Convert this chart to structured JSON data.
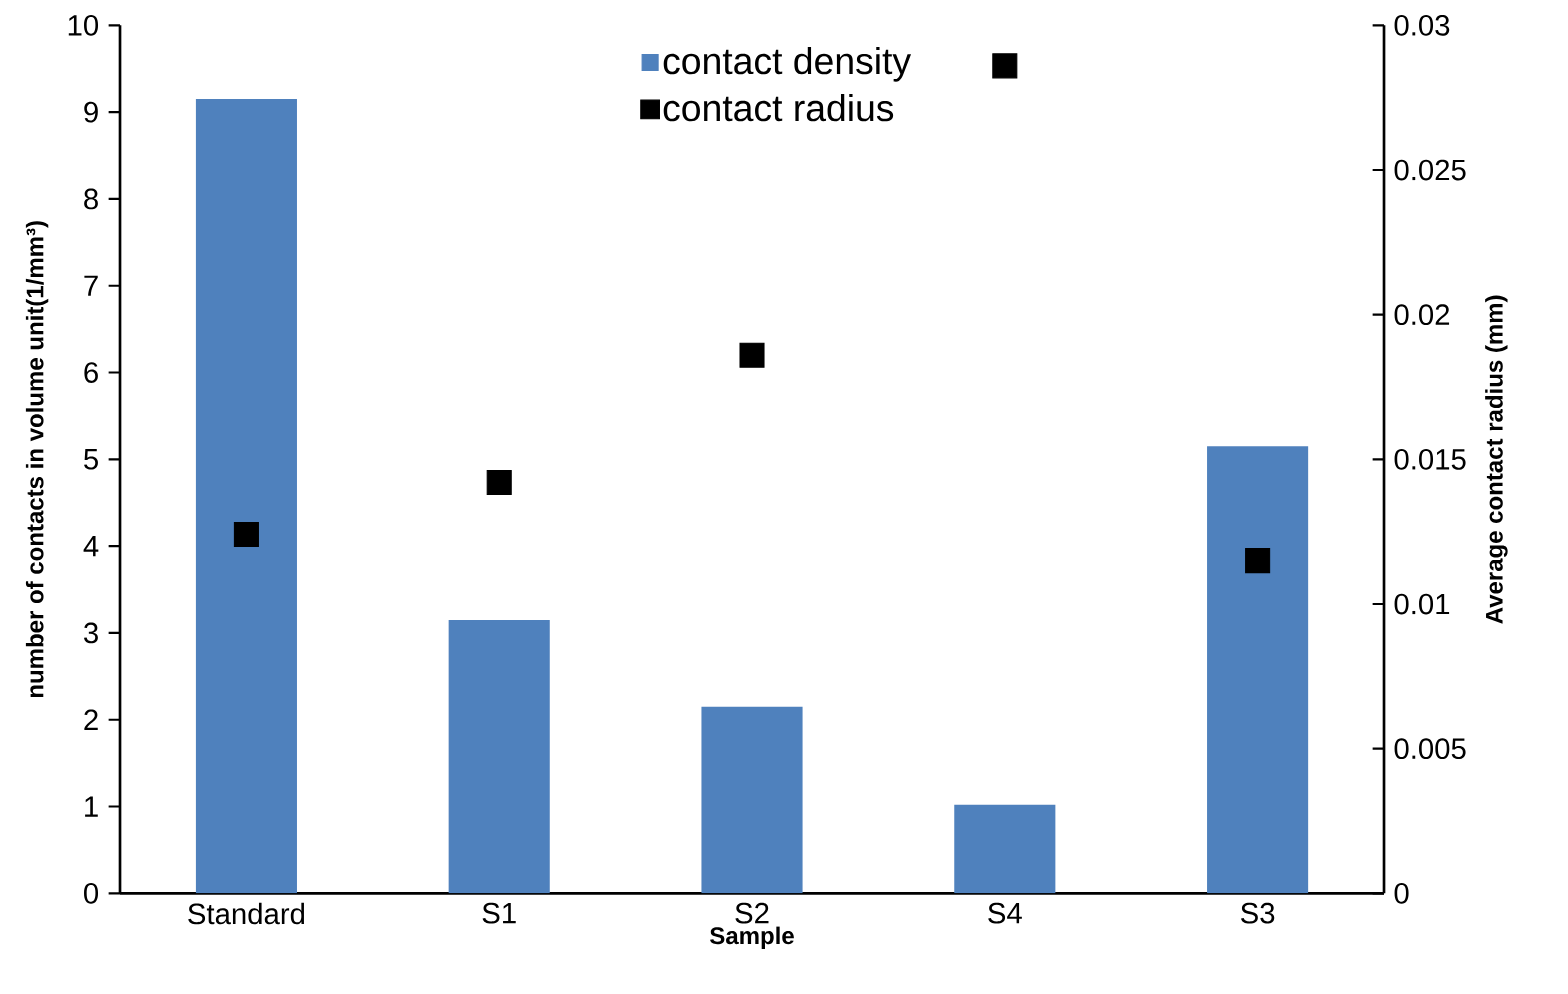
{
  "chart_data": {
    "type": "bar",
    "xlabel": "Sample",
    "ylabel": "number of contacts in volume unit(1/mm³)",
    "y2label": "Average contact radius (mm)",
    "categories": [
      "Standard",
      "S1",
      "S2",
      "S4",
      "S3"
    ],
    "series": [
      {
        "name": "contact density",
        "color": "#4f81bd",
        "values": [
          9.15,
          3.15,
          2.15,
          1.02,
          5.15
        ]
      },
      {
        "name": "contact radius",
        "type": "scatter",
        "axis": "y2",
        "marker": "square",
        "color": "#000000",
        "values": [
          0.0124,
          0.0142,
          0.0186,
          0.0286,
          0.0115
        ]
      }
    ],
    "ylim": [
      0,
      10
    ],
    "yticks": [
      0,
      1,
      2,
      3,
      4,
      5,
      6,
      7,
      8,
      9,
      10
    ],
    "y2lim": [
      0,
      0.03
    ],
    "y2ticks": [
      0,
      0.005,
      0.01,
      0.015,
      0.02,
      0.025,
      0.03
    ],
    "legend": "top"
  }
}
